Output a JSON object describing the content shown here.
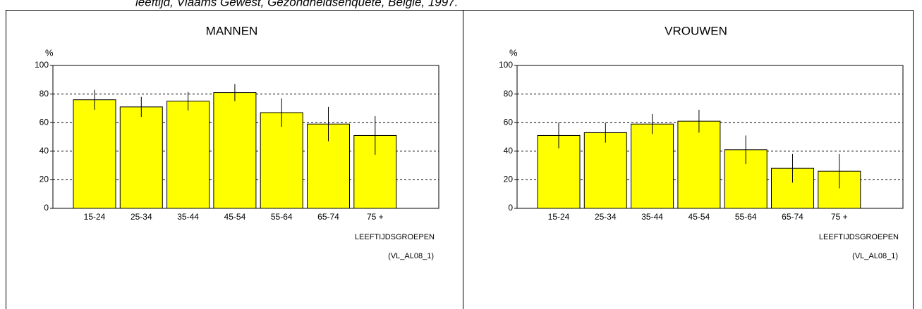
{
  "page_title": "leeftijd, Vlaams Gewest, Gezondheidsenquête, België, 1997.",
  "chart_data": [
    {
      "type": "bar",
      "title": "MANNEN",
      "y_label": "%",
      "x_label": "LEEFTIJDSGROEPEN",
      "note": "(VL_AL08_1)",
      "categories": [
        "15-24",
        "25-34",
        "35-44",
        "45-54",
        "55-64",
        "65-74",
        "75 +"
      ],
      "values": [
        76,
        71,
        75,
        81,
        67,
        59,
        51
      ],
      "errors": [
        7,
        7,
        6.5,
        6,
        10,
        12,
        13.5
      ],
      "color": "#ffff00",
      "ylim": [
        0,
        100
      ],
      "yticks": [
        0,
        20,
        40,
        60,
        80,
        100
      ],
      "grid": true
    },
    {
      "type": "bar",
      "title": "VROUWEN",
      "y_label": "%",
      "x_label": "LEEFTIJDSGROEPEN",
      "note": "(VL_AL08_1)",
      "categories": [
        "15-24",
        "25-34",
        "35-44",
        "45-54",
        "55-64",
        "65-74",
        "75 +"
      ],
      "values": [
        51,
        53,
        59,
        61,
        41,
        28,
        26
      ],
      "errors": [
        9,
        7,
        7,
        8,
        10,
        10,
        12
      ],
      "color": "#ffff00",
      "ylim": [
        0,
        100
      ],
      "yticks": [
        0,
        20,
        40,
        60,
        80,
        100
      ],
      "grid": true
    }
  ]
}
